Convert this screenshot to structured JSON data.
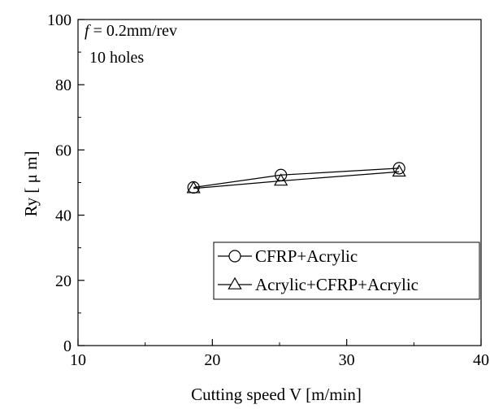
{
  "chart_data": {
    "type": "line",
    "xlabel": "Cutting speed V [m/min]",
    "ylabel": "Ry [ μ m]",
    "xlim": [
      10,
      40
    ],
    "ylim": [
      0,
      100
    ],
    "x_ticks": [
      "10",
      "20",
      "30",
      "40"
    ],
    "y_ticks": [
      "0",
      "20",
      "40",
      "60",
      "80",
      "100"
    ],
    "grid": false,
    "legend_position": "lower-right",
    "annotations": {
      "feed_symbol": "f",
      "feed_value": " = 0.2mm/rev",
      "holes": "10 holes"
    },
    "series": [
      {
        "name": "CFRP+Acrylic",
        "marker": "circle",
        "x": [
          18.6,
          25.1,
          33.9
        ],
        "y": [
          48.5,
          52.3,
          54.4
        ]
      },
      {
        "name": "Acrylic+CFRP+Acrylic",
        "marker": "triangle",
        "x": [
          18.6,
          25.1,
          33.9
        ],
        "y": [
          48.2,
          50.5,
          53.3
        ]
      }
    ]
  }
}
